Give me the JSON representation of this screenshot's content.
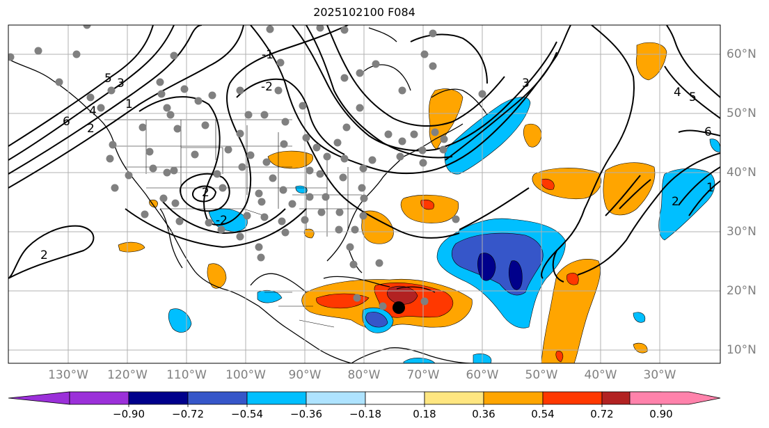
{
  "title": "2025102100 F084",
  "map": {
    "lon_labels": [
      "130°W",
      "120°W",
      "110°W",
      "100°W",
      "90°W",
      "80°W",
      "70°W",
      "60°W",
      "50°W",
      "40°W",
      "30°W"
    ],
    "lat_labels": [
      "60°N",
      "50°N",
      "40°N",
      "30°N",
      "20°N",
      "10°N"
    ],
    "contour_labels": [
      "2",
      "-2",
      "1",
      "2",
      "3",
      "4",
      "5",
      "6",
      "-1",
      "-2",
      "3",
      "4",
      "5",
      "6",
      "2",
      "2",
      "1"
    ],
    "storm_marker": {
      "name": "storm-center",
      "color": "#000000"
    },
    "station_color": "#808080"
  },
  "colorbar": {
    "ticks": [
      "−0.90",
      "−0.72",
      "−0.54",
      "−0.36",
      "−0.18",
      "0.18",
      "0.36",
      "0.54",
      "0.72",
      "0.90"
    ],
    "colors": [
      "#9b30d9",
      "#00008b",
      "#3656c9",
      "#00bfff",
      "#aee3ff",
      "#ffffff",
      "#ffe680",
      "#ffa500",
      "#ff3800",
      "#b22222",
      "#ff82ab"
    ]
  }
}
